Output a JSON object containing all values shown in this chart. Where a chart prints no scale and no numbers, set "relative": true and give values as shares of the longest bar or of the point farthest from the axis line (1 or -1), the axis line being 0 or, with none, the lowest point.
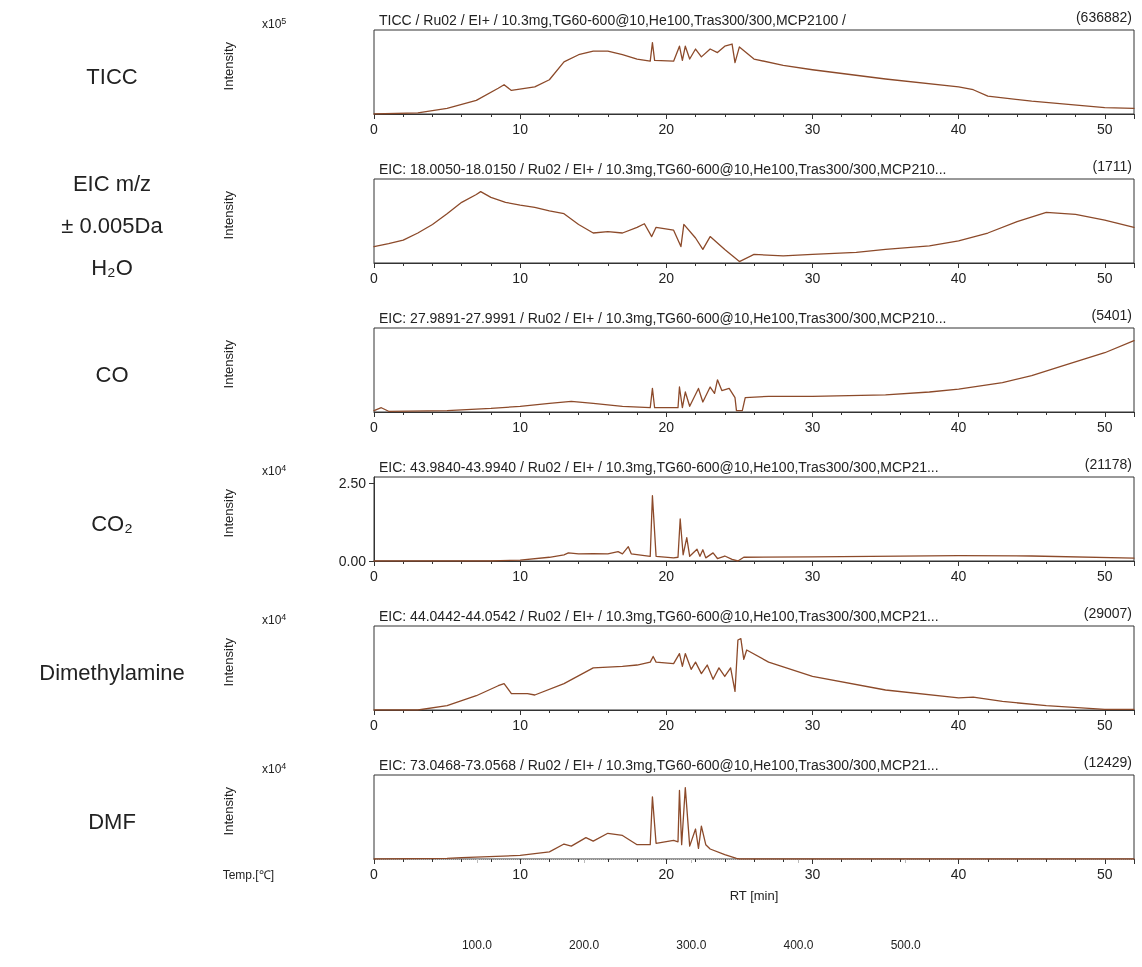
{
  "chart_data": [
    {
      "type": "line",
      "title": "TICC / Ru02 / EI+ / 10.3mg,TG60-600@10,He100,Tras300/300,MCP2100 /",
      "ylabel": "Intensity",
      "annotations": [
        "(636882)",
        "TICC",
        "x10$^{5}$"
      ],
      "relative": true,
      "color": "#8c4a2a",
      "marker": "none",
      "grid": false,
      "xlim": [
        0,
        52
      ],
      "xticks": [
        0,
        10,
        20,
        30,
        40,
        50
      ],
      "x": [
        0,
        3,
        5,
        7,
        8.5,
        8.9,
        9.4,
        11,
        12,
        13,
        14,
        15,
        16,
        17,
        18,
        18.9,
        19.05,
        19.2,
        20.5,
        20.9,
        21.1,
        21.3,
        21.6,
        22,
        22.4,
        23,
        23.5,
        24,
        24.5,
        24.7,
        25,
        26,
        28,
        30,
        35,
        40,
        41,
        42,
        45,
        50,
        52
      ],
      "values": [
        0,
        0.015,
        0.08,
        0.19,
        0.36,
        0.41,
        0.33,
        0.38,
        0.48,
        0.73,
        0.83,
        0.88,
        0.88,
        0.83,
        0.77,
        0.74,
        1.0,
        0.75,
        0.74,
        0.95,
        0.75,
        0.95,
        0.77,
        0.91,
        0.8,
        0.91,
        0.86,
        0.95,
        0.98,
        0.72,
        0.94,
        0.77,
        0.68,
        0.62,
        0.49,
        0.38,
        0.34,
        0.25,
        0.18,
        0.09,
        0.08
      ]
    },
    {
      "type": "line",
      "title": "EIC: 18.0050-18.0150 / Ru02 / EI+ / 10.3mg,TG60-600@10,He100,Tras300/300,MCP210...",
      "ylabel": "Intensity",
      "annotations": [
        "(1711)",
        "EIC m/z\n± 0.005Da\nH₂O"
      ],
      "relative": true,
      "color": "#8c4a2a",
      "marker": "none",
      "grid": false,
      "xlim": [
        0,
        52
      ],
      "xticks": [
        0,
        10,
        20,
        30,
        40,
        50
      ],
      "x": [
        0,
        1,
        2,
        3,
        4,
        5,
        6,
        7,
        7.3,
        8,
        9,
        10,
        11,
        12,
        13,
        14,
        15,
        16,
        17,
        18,
        18.5,
        19,
        19.3,
        20.5,
        21,
        21.2,
        22,
        22.5,
        23,
        24,
        25,
        26,
        28,
        30,
        33,
        35,
        38,
        40,
        42,
        44,
        46,
        48,
        50,
        52
      ],
      "values": [
        0.23,
        0.27,
        0.32,
        0.42,
        0.54,
        0.69,
        0.85,
        0.96,
        1.0,
        0.92,
        0.85,
        0.81,
        0.78,
        0.73,
        0.69,
        0.54,
        0.42,
        0.44,
        0.42,
        0.5,
        0.55,
        0.37,
        0.5,
        0.46,
        0.23,
        0.54,
        0.35,
        0.19,
        0.37,
        0.19,
        0.02,
        0.12,
        0.1,
        0.12,
        0.15,
        0.19,
        0.24,
        0.31,
        0.42,
        0.58,
        0.71,
        0.68,
        0.6,
        0.5
      ]
    },
    {
      "type": "line",
      "title": "EIC: 27.9891-27.9991 / Ru02 / EI+ / 10.3mg,TG60-600@10,He100,Tras300/300,MCP210...",
      "ylabel": "Intensity",
      "annotations": [
        "(5401)",
        "CO"
      ],
      "relative": true,
      "color": "#8c4a2a",
      "marker": "none",
      "grid": false,
      "xlim": [
        0,
        52
      ],
      "xticks": [
        0,
        10,
        20,
        30,
        40,
        50
      ],
      "x": [
        0,
        0.5,
        1,
        5,
        8,
        10,
        12,
        13.5,
        15,
        17,
        18.9,
        19.05,
        19.2,
        20.8,
        20.9,
        21.1,
        21.3,
        21.6,
        22.2,
        22.5,
        23,
        23.3,
        23.5,
        23.8,
        24.3,
        24.7,
        24.8,
        25.2,
        25.4,
        27,
        30,
        35,
        38,
        40,
        43,
        45,
        47,
        50,
        52
      ],
      "values": [
        0.02,
        0.06,
        0.01,
        0.02,
        0.05,
        0.08,
        0.12,
        0.15,
        0.12,
        0.08,
        0.06,
        0.33,
        0.06,
        0.06,
        0.35,
        0.06,
        0.28,
        0.08,
        0.33,
        0.14,
        0.35,
        0.26,
        0.45,
        0.3,
        0.33,
        0.2,
        0.02,
        0.02,
        0.2,
        0.22,
        0.22,
        0.24,
        0.28,
        0.32,
        0.41,
        0.51,
        0.64,
        0.83,
        1.0
      ]
    },
    {
      "type": "line",
      "title": "EIC: 43.9840-43.9940 / Ru02 / EI+ / 10.3mg,TG60-600@10,He100,Tras300/300,MCP21...",
      "ylabel": "Intensity",
      "annotations": [
        "(21178)",
        "CO₂",
        "x10$^{4}$"
      ],
      "color": "#8c4a2a",
      "marker": "none",
      "grid": false,
      "xlim": [
        0,
        52
      ],
      "xticks": [
        0,
        10,
        20,
        30,
        40,
        50
      ],
      "ylim": [
        0,
        2.7
      ],
      "yticks": [
        {
          "value": 0,
          "label": "0.00"
        },
        {
          "value": 2.5,
          "label": "2.50"
        }
      ],
      "x": [
        0,
        8,
        10,
        12,
        13,
        13.3,
        14,
        15,
        16,
        16.7,
        17,
        17.4,
        17.6,
        18.9,
        19.05,
        19.3,
        20.5,
        20.8,
        20.95,
        21.15,
        21.4,
        21.6,
        22.1,
        22.3,
        22.5,
        22.7,
        23.2,
        23.5,
        24,
        24.5,
        24.9,
        25.3,
        30,
        40,
        45,
        52
      ],
      "values": [
        0,
        0,
        0.03,
        0.12,
        0.2,
        0.26,
        0.23,
        0.24,
        0.23,
        0.3,
        0.23,
        0.46,
        0.23,
        0.15,
        2.1,
        0.15,
        0.1,
        0.12,
        1.35,
        0.2,
        0.75,
        0.15,
        0.38,
        0.15,
        0.36,
        0.1,
        0.26,
        0.08,
        0.16,
        0.05,
        0,
        0.12,
        0.13,
        0.17,
        0.16,
        0.09
      ]
    },
    {
      "type": "line",
      "title": "EIC: 44.0442-44.0542 / Ru02 / EI+ / 10.3mg,TG60-600@10,He100,Tras300/300,MCP21...",
      "ylabel": "Intensity",
      "annotations": [
        "(29007)",
        "Dimethylamine",
        "x10$^{4}$"
      ],
      "relative": true,
      "color": "#8c4a2a",
      "marker": "none",
      "grid": false,
      "xlim": [
        0,
        52
      ],
      "xticks": [
        0,
        10,
        20,
        30,
        40,
        50
      ],
      "x": [
        0,
        3,
        5,
        7,
        8.5,
        8.9,
        9.4,
        10.5,
        11,
        13,
        15,
        17,
        18,
        18.9,
        19.1,
        19.3,
        20.5,
        20.9,
        21.1,
        21.3,
        21.7,
        22,
        22.4,
        22.8,
        23.2,
        23.6,
        24,
        24.4,
        24.7,
        24.9,
        25.1,
        25.3,
        25.5,
        27,
        30,
        35,
        40,
        41,
        43,
        46,
        50,
        52
      ],
      "values": [
        0,
        0,
        0.06,
        0.2,
        0.34,
        0.37,
        0.23,
        0.23,
        0.21,
        0.37,
        0.59,
        0.61,
        0.63,
        0.67,
        0.75,
        0.67,
        0.65,
        0.79,
        0.61,
        0.79,
        0.57,
        0.67,
        0.51,
        0.63,
        0.43,
        0.59,
        0.47,
        0.59,
        0.26,
        0.98,
        1.0,
        0.71,
        0.84,
        0.67,
        0.47,
        0.28,
        0.17,
        0.18,
        0.12,
        0.06,
        0.01,
        0.01
      ]
    },
    {
      "type": "line",
      "title": "EIC: 73.0468-73.0568 / Ru02 / EI+ / 10.3mg,TG60-600@10,He100,Tras300/300,MCP21...",
      "ylabel": "Intensity",
      "xlabel": "RT [min]",
      "annotations": [
        "(12429)",
        "DMF",
        "x10$^{4}$"
      ],
      "relative": true,
      "color": "#8c4a2a",
      "marker": "none",
      "grid": false,
      "xlim": [
        0,
        52
      ],
      "xticks": [
        0,
        10,
        20,
        30,
        40,
        50
      ],
      "x2label": "Temp.[℃]",
      "x2lim": [
        4,
        713
      ],
      "x2ticks": [
        {
          "value": 100,
          "label": "100.0"
        },
        {
          "value": 200,
          "label": "200.0"
        },
        {
          "value": 300,
          "label": "300.0"
        },
        {
          "value": 400,
          "label": "400.0"
        },
        {
          "value": 500,
          "label": "500.0"
        }
      ],
      "x": [
        0,
        5,
        6,
        10,
        12,
        13,
        13.5,
        14.5,
        15,
        16,
        17,
        18,
        18.9,
        19.05,
        19.3,
        20.5,
        20.8,
        20.9,
        21.05,
        21.3,
        21.6,
        22,
        22.2,
        22.4,
        22.7,
        23,
        24,
        24.8,
        25,
        52
      ],
      "values": [
        0,
        0.01,
        0.02,
        0.05,
        0.1,
        0.21,
        0.18,
        0.3,
        0.25,
        0.36,
        0.33,
        0.2,
        0.2,
        0.87,
        0.22,
        0.26,
        0.24,
        0.96,
        0.2,
        1.0,
        0.18,
        0.42,
        0.15,
        0.46,
        0.2,
        0.14,
        0.06,
        0.01,
        0,
        0
      ]
    }
  ]
}
